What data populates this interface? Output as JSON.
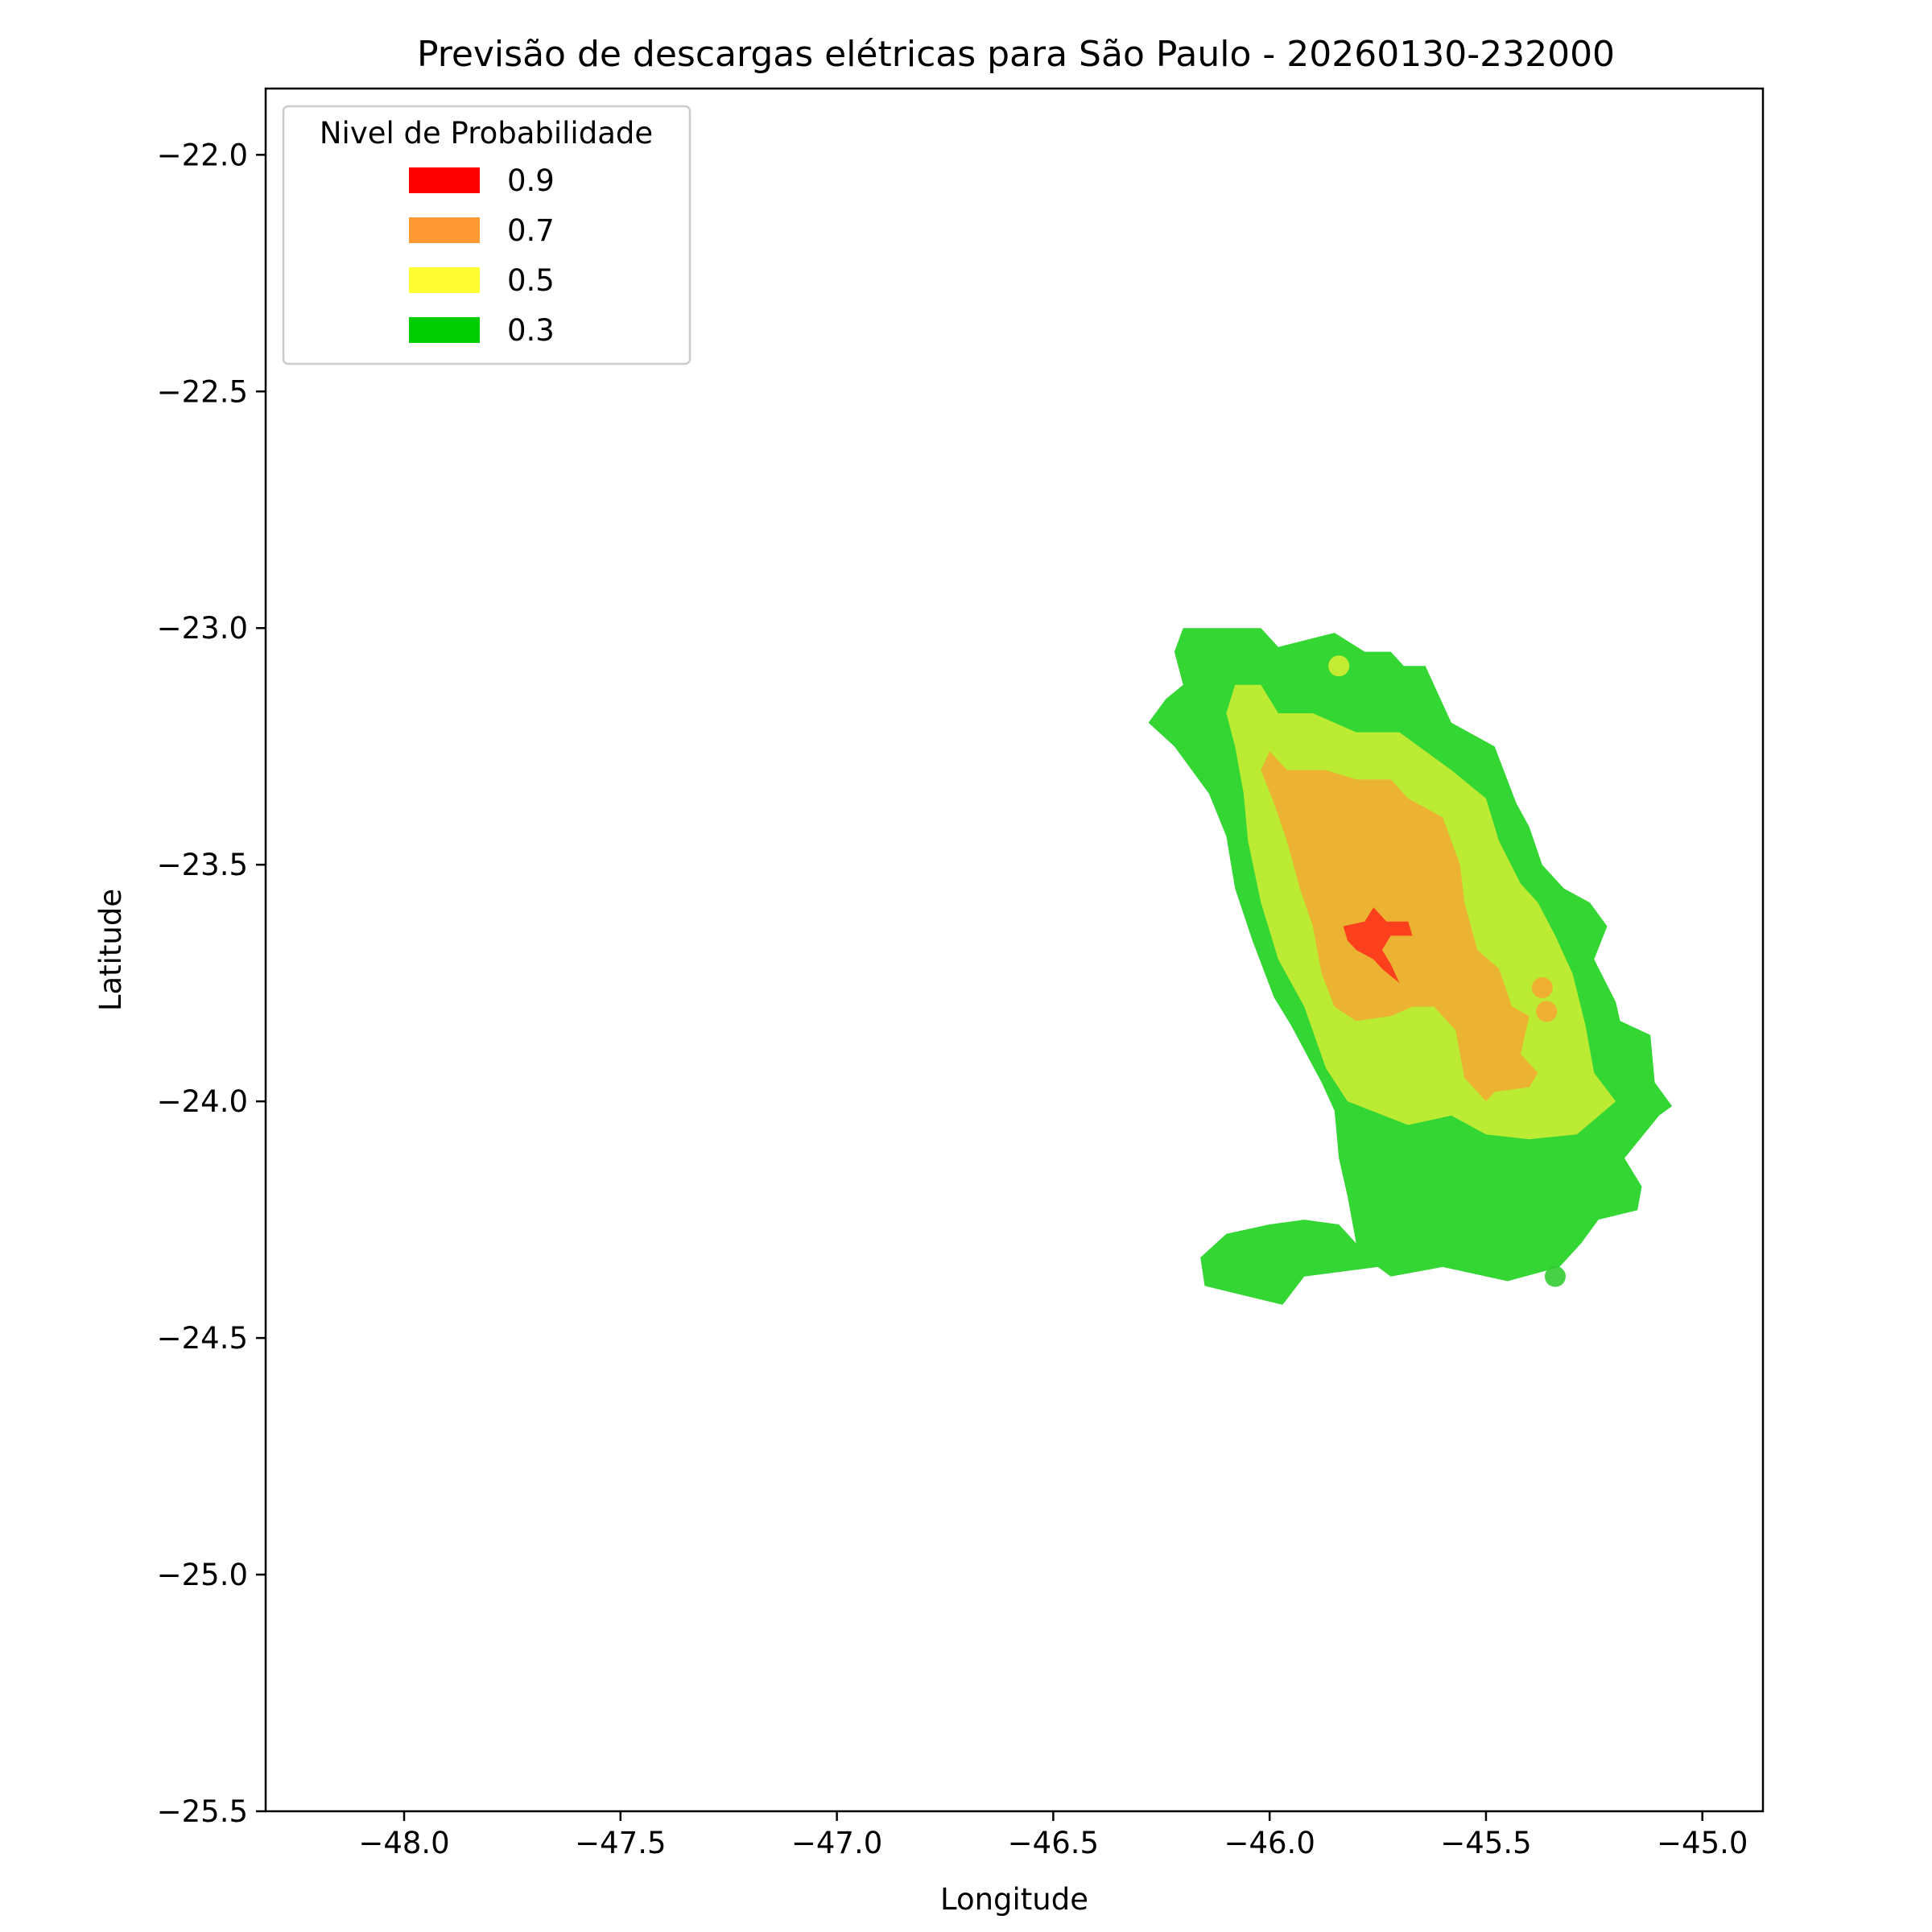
{
  "chart_data": {
    "type": "area",
    "title": "Previsão de descargas elétricas para São Paulo - 20260130-232000",
    "xlabel": "Longitude",
    "ylabel": "Latitude",
    "xlim": [
      -48.32,
      -44.86
    ],
    "ylim": [
      -25.5,
      -21.86
    ],
    "xticks": [
      -48.0,
      -47.5,
      -47.0,
      -46.5,
      -46.0,
      -45.5,
      -45.0
    ],
    "yticks": [
      -22.0,
      -22.5,
      -23.0,
      -23.5,
      -24.0,
      -24.5,
      -25.0,
      -25.5
    ],
    "xtick_labels": [
      "−48.0",
      "−47.5",
      "−47.0",
      "−46.5",
      "−46.0",
      "−45.5",
      "−45.0"
    ],
    "ytick_labels": [
      "−22.0",
      "−22.5",
      "−23.0",
      "−23.5",
      "−24.0",
      "−24.5",
      "−25.0",
      "−25.5"
    ],
    "grid": false,
    "legend": {
      "title": "Nivel de Probabilidade",
      "placement": "top-left",
      "entries": [
        {
          "label": "0.9",
          "color": "#ff0000"
        },
        {
          "label": "0.7",
          "color": "#ff9933"
        },
        {
          "label": "0.5",
          "color": "#ffff33"
        },
        {
          "label": "0.3",
          "color": "#00cc00"
        }
      ]
    },
    "regions": [
      {
        "level": "0.3",
        "color": "#00cc00",
        "name": "region-level-0.3-main",
        "coords": [
          [
            -46.2,
            -23.0
          ],
          [
            -46.02,
            -23.0
          ],
          [
            -45.98,
            -23.04
          ],
          [
            -45.85,
            -23.01
          ],
          [
            -45.78,
            -23.05
          ],
          [
            -45.72,
            -23.05
          ],
          [
            -45.69,
            -23.08
          ],
          [
            -45.64,
            -23.08
          ],
          [
            -45.58,
            -23.2
          ],
          [
            -45.48,
            -23.25
          ],
          [
            -45.43,
            -23.37
          ],
          [
            -45.4,
            -23.42
          ],
          [
            -45.37,
            -23.5
          ],
          [
            -45.32,
            -23.55
          ],
          [
            -45.26,
            -23.58
          ],
          [
            -45.22,
            -23.63
          ],
          [
            -45.25,
            -23.7
          ],
          [
            -45.2,
            -23.79
          ],
          [
            -45.19,
            -23.83
          ],
          [
            -45.12,
            -23.86
          ],
          [
            -45.11,
            -23.96
          ],
          [
            -45.07,
            -24.01
          ],
          [
            -45.1,
            -24.03
          ],
          [
            -45.18,
            -24.12
          ],
          [
            -45.14,
            -24.18
          ],
          [
            -45.15,
            -24.23
          ],
          [
            -45.24,
            -24.25
          ],
          [
            -45.28,
            -24.3
          ],
          [
            -45.33,
            -24.35
          ],
          [
            -45.45,
            -24.38
          ],
          [
            -45.6,
            -24.35
          ],
          [
            -45.72,
            -24.37
          ],
          [
            -45.75,
            -24.35
          ],
          [
            -45.92,
            -24.37
          ],
          [
            -45.97,
            -24.43
          ],
          [
            -46.15,
            -24.39
          ],
          [
            -46.16,
            -24.33
          ],
          [
            -46.1,
            -24.28
          ],
          [
            -46.0,
            -24.26
          ],
          [
            -45.92,
            -24.25
          ],
          [
            -45.84,
            -24.26
          ],
          [
            -45.8,
            -24.3
          ],
          [
            -45.82,
            -24.2
          ],
          [
            -45.84,
            -24.12
          ],
          [
            -45.85,
            -24.02
          ],
          [
            -45.88,
            -23.96
          ],
          [
            -45.95,
            -23.84
          ],
          [
            -45.99,
            -23.78
          ],
          [
            -46.04,
            -23.66
          ],
          [
            -46.08,
            -23.55
          ],
          [
            -46.1,
            -23.44
          ],
          [
            -46.14,
            -23.35
          ],
          [
            -46.22,
            -23.25
          ],
          [
            -46.28,
            -23.2
          ],
          [
            -46.24,
            -23.15
          ],
          [
            -46.2,
            -23.12
          ],
          [
            -46.22,
            -23.05
          ]
        ]
      },
      {
        "level": "0.5",
        "color": "#d4ee33",
        "name": "region-level-0.5",
        "coords": [
          [
            -46.1,
            -23.18
          ],
          [
            -46.08,
            -23.12
          ],
          [
            -46.02,
            -23.12
          ],
          [
            -45.98,
            -23.18
          ],
          [
            -45.9,
            -23.18
          ],
          [
            -45.8,
            -23.22
          ],
          [
            -45.7,
            -23.22
          ],
          [
            -45.58,
            -23.3
          ],
          [
            -45.5,
            -23.36
          ],
          [
            -45.47,
            -23.45
          ],
          [
            -45.42,
            -23.54
          ],
          [
            -45.38,
            -23.58
          ],
          [
            -45.34,
            -23.65
          ],
          [
            -45.3,
            -23.73
          ],
          [
            -45.27,
            -23.84
          ],
          [
            -45.25,
            -23.94
          ],
          [
            -45.2,
            -24.0
          ],
          [
            -45.29,
            -24.07
          ],
          [
            -45.4,
            -24.08
          ],
          [
            -45.5,
            -24.07
          ],
          [
            -45.58,
            -24.03
          ],
          [
            -45.68,
            -24.05
          ],
          [
            -45.82,
            -24.0
          ],
          [
            -45.87,
            -23.93
          ],
          [
            -45.92,
            -23.8
          ],
          [
            -45.98,
            -23.7
          ],
          [
            -46.02,
            -23.58
          ],
          [
            -46.05,
            -23.45
          ],
          [
            -46.06,
            -23.35
          ],
          [
            -46.08,
            -23.25
          ]
        ]
      },
      {
        "level": "0.7",
        "color": "#f5a833",
        "name": "region-level-0.7",
        "coords": [
          [
            -46.0,
            -23.26
          ],
          [
            -45.96,
            -23.3
          ],
          [
            -45.87,
            -23.3
          ],
          [
            -45.8,
            -23.32
          ],
          [
            -45.72,
            -23.32
          ],
          [
            -45.68,
            -23.36
          ],
          [
            -45.6,
            -23.4
          ],
          [
            -45.56,
            -23.5
          ],
          [
            -45.55,
            -23.58
          ],
          [
            -45.52,
            -23.68
          ],
          [
            -45.47,
            -23.72
          ],
          [
            -45.44,
            -23.8
          ],
          [
            -45.4,
            -23.82
          ],
          [
            -45.42,
            -23.9
          ],
          [
            -45.38,
            -23.94
          ],
          [
            -45.4,
            -23.97
          ],
          [
            -45.48,
            -23.98
          ],
          [
            -45.5,
            -24.0
          ],
          [
            -45.55,
            -23.95
          ],
          [
            -45.57,
            -23.85
          ],
          [
            -45.62,
            -23.8
          ],
          [
            -45.67,
            -23.8
          ],
          [
            -45.72,
            -23.82
          ],
          [
            -45.8,
            -23.83
          ],
          [
            -45.85,
            -23.8
          ],
          [
            -45.88,
            -23.73
          ],
          [
            -45.9,
            -23.63
          ],
          [
            -45.93,
            -23.55
          ],
          [
            -45.96,
            -23.45
          ],
          [
            -45.99,
            -23.37
          ],
          [
            -46.02,
            -23.3
          ]
        ]
      },
      {
        "level": "0.9",
        "color": "#ff2a1a",
        "name": "region-level-0.9",
        "coords": [
          [
            -45.83,
            -23.63
          ],
          [
            -45.78,
            -23.62
          ],
          [
            -45.76,
            -23.59
          ],
          [
            -45.73,
            -23.62
          ],
          [
            -45.68,
            -23.62
          ],
          [
            -45.67,
            -23.65
          ],
          [
            -45.72,
            -23.65
          ],
          [
            -45.74,
            -23.68
          ],
          [
            -45.72,
            -23.71
          ],
          [
            -45.7,
            -23.75
          ],
          [
            -45.74,
            -23.72
          ],
          [
            -45.76,
            -23.7
          ],
          [
            -45.8,
            -23.68
          ],
          [
            -45.82,
            -23.66
          ]
        ]
      }
    ],
    "points": [
      {
        "level": "0.5",
        "color": "#d4ee33",
        "name": "point-level-0.5",
        "lon": -45.84,
        "lat": -23.08
      },
      {
        "level": "0.7",
        "color": "#f5a833",
        "name": "point-level-0.7-a",
        "lon": -45.37,
        "lat": -23.76
      },
      {
        "level": "0.7",
        "color": "#f5a833",
        "name": "point-level-0.7-b",
        "lon": -45.36,
        "lat": -23.81
      },
      {
        "level": "0.3",
        "color": "#33cc33",
        "name": "point-level-0.3",
        "lon": -45.34,
        "lat": -24.37
      }
    ]
  }
}
